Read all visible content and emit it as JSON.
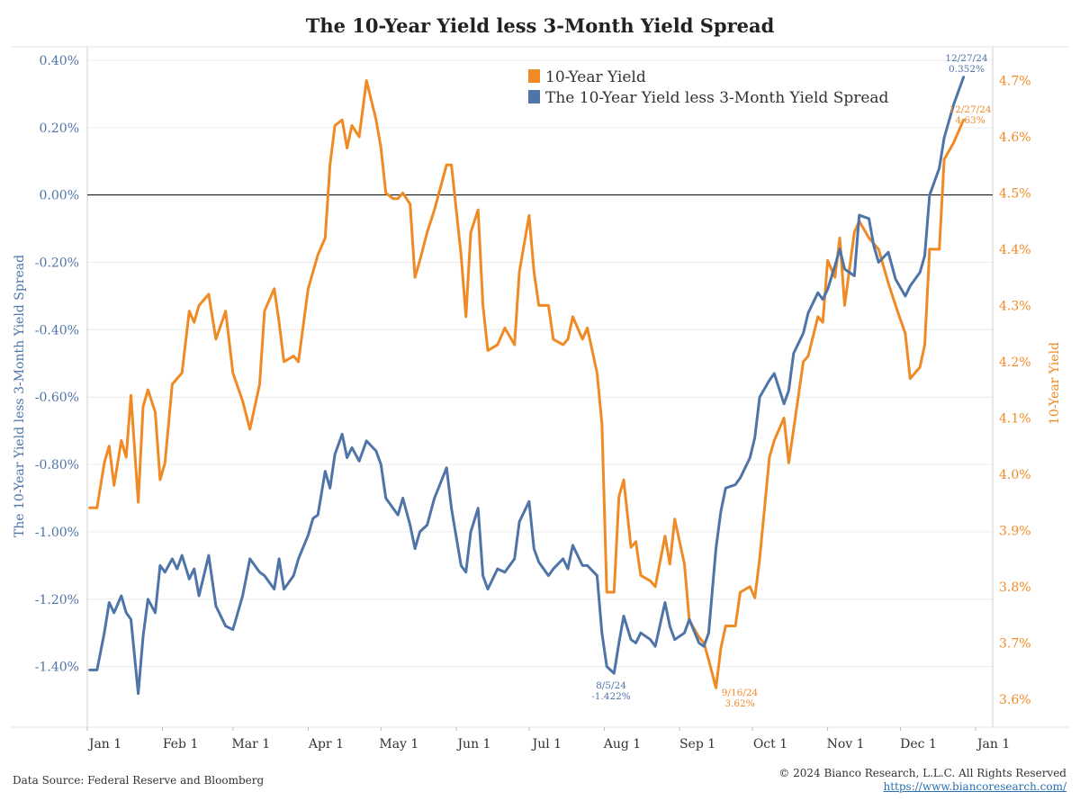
{
  "chart_data": {
    "type": "line",
    "title": "The 10-Year Yield less 3-Month Yield Spread",
    "x_ticks": [
      "Jan 1",
      "Feb 1",
      "Mar 1",
      "Apr 1",
      "May 1",
      "Jun 1",
      "Jul 1",
      "Aug 1",
      "Sep 1",
      "Oct 1",
      "Nov 1",
      "Dec 1",
      "Jan 1"
    ],
    "x_range": [
      "2024-01-01",
      "2025-01-08"
    ],
    "y_left": {
      "label": "The 10-Year Yield less 3-Month Yield Spread",
      "ticks": [
        "0.40%",
        "0.20%",
        "0.00%",
        "-0.20%",
        "-0.40%",
        "-0.60%",
        "-0.80%",
        "-1.00%",
        "-1.20%",
        "-1.40%"
      ],
      "range": [
        -1.58,
        0.44
      ]
    },
    "y_right": {
      "label": "10-Year Yield",
      "ticks": [
        "4.7%",
        "4.6%",
        "4.5%",
        "4.4%",
        "4.3%",
        "4.2%",
        "4.1%",
        "4.0%",
        "3.9%",
        "3.8%",
        "3.7%",
        "3.6%"
      ],
      "range": [
        3.55,
        4.76
      ]
    },
    "zero_line": 0,
    "grid": true,
    "legend": {
      "position": "top-center"
    },
    "series": [
      {
        "name": "10-Year Yield",
        "axis": "right",
        "color": "#f08a24",
        "x": [
          "2024-01-02",
          "2024-01-05",
          "2024-01-08",
          "2024-01-10",
          "2024-01-12",
          "2024-01-15",
          "2024-01-17",
          "2024-01-19",
          "2024-01-22",
          "2024-01-24",
          "2024-01-26",
          "2024-01-29",
          "2024-01-31",
          "2024-02-02",
          "2024-02-05",
          "2024-02-07",
          "2024-02-09",
          "2024-02-12",
          "2024-02-14",
          "2024-02-16",
          "2024-02-20",
          "2024-02-23",
          "2024-02-27",
          "2024-03-01",
          "2024-03-05",
          "2024-03-08",
          "2024-03-12",
          "2024-03-14",
          "2024-03-18",
          "2024-03-20",
          "2024-03-22",
          "2024-03-26",
          "2024-03-28",
          "2024-04-01",
          "2024-04-03",
          "2024-04-05",
          "2024-04-08",
          "2024-04-10",
          "2024-04-12",
          "2024-04-15",
          "2024-04-17",
          "2024-04-19",
          "2024-04-22",
          "2024-04-25",
          "2024-04-29",
          "2024-05-01",
          "2024-05-03",
          "2024-05-06",
          "2024-05-08",
          "2024-05-10",
          "2024-05-13",
          "2024-05-15",
          "2024-05-17",
          "2024-05-20",
          "2024-05-23",
          "2024-05-28",
          "2024-05-30",
          "2024-06-03",
          "2024-06-05",
          "2024-06-07",
          "2024-06-10",
          "2024-06-12",
          "2024-06-14",
          "2024-06-18",
          "2024-06-21",
          "2024-06-25",
          "2024-06-27",
          "2024-07-01",
          "2024-07-03",
          "2024-07-05",
          "2024-07-09",
          "2024-07-11",
          "2024-07-15",
          "2024-07-17",
          "2024-07-19",
          "2024-07-23",
          "2024-07-25",
          "2024-07-29",
          "2024-07-31",
          "2024-08-02",
          "2024-08-05",
          "2024-08-07",
          "2024-08-09",
          "2024-08-12",
          "2024-08-14",
          "2024-08-16",
          "2024-08-20",
          "2024-08-22",
          "2024-08-26",
          "2024-08-28",
          "2024-08-30",
          "2024-09-03",
          "2024-09-05",
          "2024-09-09",
          "2024-09-11",
          "2024-09-13",
          "2024-09-16",
          "2024-09-18",
          "2024-09-20",
          "2024-09-24",
          "2024-09-26",
          "2024-09-30",
          "2024-10-02",
          "2024-10-04",
          "2024-10-08",
          "2024-10-10",
          "2024-10-14",
          "2024-10-16",
          "2024-10-18",
          "2024-10-22",
          "2024-10-24",
          "2024-10-28",
          "2024-10-30",
          "2024-11-01",
          "2024-11-04",
          "2024-11-06",
          "2024-11-08",
          "2024-11-12",
          "2024-11-14",
          "2024-11-18",
          "2024-11-20",
          "2024-11-22",
          "2024-11-26",
          "2024-11-29",
          "2024-12-03",
          "2024-12-05",
          "2024-12-09",
          "2024-12-11",
          "2024-12-13",
          "2024-12-17",
          "2024-12-19",
          "2024-12-23",
          "2024-12-27"
        ],
        "values": [
          3.94,
          3.94,
          4.02,
          4.05,
          3.98,
          4.06,
          4.03,
          4.14,
          3.95,
          4.12,
          4.15,
          4.11,
          3.99,
          4.02,
          4.16,
          4.17,
          4.18,
          4.29,
          4.27,
          4.3,
          4.32,
          4.24,
          4.29,
          4.18,
          4.13,
          4.08,
          4.16,
          4.29,
          4.33,
          4.27,
          4.2,
          4.21,
          4.2,
          4.33,
          4.36,
          4.39,
          4.42,
          4.55,
          4.62,
          4.63,
          4.58,
          4.62,
          4.6,
          4.7,
          4.63,
          4.58,
          4.5,
          4.49,
          4.49,
          4.5,
          4.48,
          4.35,
          4.38,
          4.43,
          4.47,
          4.55,
          4.55,
          4.39,
          4.28,
          4.43,
          4.47,
          4.3,
          4.22,
          4.23,
          4.26,
          4.23,
          4.36,
          4.46,
          4.36,
          4.3,
          4.3,
          4.24,
          4.23,
          4.24,
          4.28,
          4.24,
          4.26,
          4.18,
          4.09,
          3.79,
          3.79,
          3.96,
          3.99,
          3.87,
          3.88,
          3.82,
          3.81,
          3.8,
          3.89,
          3.84,
          3.92,
          3.84,
          3.74,
          3.71,
          3.7,
          3.67,
          3.62,
          3.69,
          3.73,
          3.73,
          3.79,
          3.8,
          3.78,
          3.85,
          4.03,
          4.06,
          4.1,
          4.02,
          4.08,
          4.2,
          4.21,
          4.28,
          4.27,
          4.38,
          4.35,
          4.42,
          4.3,
          4.43,
          4.45,
          4.42,
          4.41,
          4.4,
          4.34,
          4.3,
          4.25,
          4.17,
          4.19,
          4.23,
          4.4,
          4.4,
          4.56,
          4.59,
          4.63
        ]
      },
      {
        "name": "The 10-Year Yield less 3-Month Yield Spread",
        "axis": "left",
        "color": "#4e74a8",
        "x": [
          "2024-01-02",
          "2024-01-05",
          "2024-01-08",
          "2024-01-10",
          "2024-01-12",
          "2024-01-15",
          "2024-01-17",
          "2024-01-19",
          "2024-01-22",
          "2024-01-24",
          "2024-01-26",
          "2024-01-29",
          "2024-01-31",
          "2024-02-02",
          "2024-02-05",
          "2024-02-07",
          "2024-02-09",
          "2024-02-12",
          "2024-02-14",
          "2024-02-16",
          "2024-02-20",
          "2024-02-23",
          "2024-02-27",
          "2024-03-01",
          "2024-03-05",
          "2024-03-08",
          "2024-03-12",
          "2024-03-14",
          "2024-03-18",
          "2024-03-20",
          "2024-03-22",
          "2024-03-26",
          "2024-03-28",
          "2024-04-01",
          "2024-04-03",
          "2024-04-05",
          "2024-04-08",
          "2024-04-10",
          "2024-04-12",
          "2024-04-15",
          "2024-04-17",
          "2024-04-19",
          "2024-04-22",
          "2024-04-25",
          "2024-04-29",
          "2024-05-01",
          "2024-05-03",
          "2024-05-06",
          "2024-05-08",
          "2024-05-10",
          "2024-05-13",
          "2024-05-15",
          "2024-05-17",
          "2024-05-20",
          "2024-05-23",
          "2024-05-28",
          "2024-05-30",
          "2024-06-03",
          "2024-06-05",
          "2024-06-07",
          "2024-06-10",
          "2024-06-12",
          "2024-06-14",
          "2024-06-18",
          "2024-06-21",
          "2024-06-25",
          "2024-06-27",
          "2024-07-01",
          "2024-07-03",
          "2024-07-05",
          "2024-07-09",
          "2024-07-11",
          "2024-07-15",
          "2024-07-17",
          "2024-07-19",
          "2024-07-23",
          "2024-07-25",
          "2024-07-29",
          "2024-07-31",
          "2024-08-02",
          "2024-08-05",
          "2024-08-07",
          "2024-08-09",
          "2024-08-12",
          "2024-08-14",
          "2024-08-16",
          "2024-08-20",
          "2024-08-22",
          "2024-08-26",
          "2024-08-28",
          "2024-08-30",
          "2024-09-03",
          "2024-09-05",
          "2024-09-09",
          "2024-09-11",
          "2024-09-13",
          "2024-09-16",
          "2024-09-18",
          "2024-09-20",
          "2024-09-24",
          "2024-09-26",
          "2024-09-30",
          "2024-10-02",
          "2024-10-04",
          "2024-10-08",
          "2024-10-10",
          "2024-10-14",
          "2024-10-16",
          "2024-10-18",
          "2024-10-22",
          "2024-10-24",
          "2024-10-28",
          "2024-10-30",
          "2024-11-01",
          "2024-11-04",
          "2024-11-06",
          "2024-11-08",
          "2024-11-12",
          "2024-11-14",
          "2024-11-18",
          "2024-11-20",
          "2024-11-22",
          "2024-11-26",
          "2024-11-29",
          "2024-12-03",
          "2024-12-05",
          "2024-12-09",
          "2024-12-11",
          "2024-12-13",
          "2024-12-17",
          "2024-12-19",
          "2024-12-23",
          "2024-12-27"
        ],
        "values": [
          -1.41,
          -1.41,
          -1.3,
          -1.21,
          -1.24,
          -1.19,
          -1.24,
          -1.26,
          -1.48,
          -1.31,
          -1.2,
          -1.24,
          -1.1,
          -1.12,
          -1.08,
          -1.11,
          -1.07,
          -1.14,
          -1.11,
          -1.19,
          -1.07,
          -1.22,
          -1.28,
          -1.29,
          -1.19,
          -1.08,
          -1.12,
          -1.13,
          -1.17,
          -1.08,
          -1.17,
          -1.13,
          -1.08,
          -1.01,
          -0.96,
          -0.95,
          -0.82,
          -0.87,
          -0.77,
          -0.71,
          -0.78,
          -0.75,
          -0.79,
          -0.73,
          -0.76,
          -0.8,
          -0.9,
          -0.93,
          -0.95,
          -0.9,
          -0.98,
          -1.05,
          -1.0,
          -0.98,
          -0.9,
          -0.81,
          -0.93,
          -1.1,
          -1.12,
          -1.0,
          -0.93,
          -1.13,
          -1.17,
          -1.11,
          -1.12,
          -1.08,
          -0.97,
          -0.91,
          -1.05,
          -1.09,
          -1.13,
          -1.11,
          -1.08,
          -1.11,
          -1.04,
          -1.1,
          -1.1,
          -1.13,
          -1.3,
          -1.4,
          -1.42,
          -1.33,
          -1.25,
          -1.32,
          -1.33,
          -1.3,
          -1.32,
          -1.34,
          -1.21,
          -1.28,
          -1.32,
          -1.3,
          -1.26,
          -1.33,
          -1.34,
          -1.3,
          -1.05,
          -0.94,
          -0.87,
          -0.86,
          -0.84,
          -0.78,
          -0.72,
          -0.6,
          -0.55,
          -0.53,
          -0.62,
          -0.58,
          -0.47,
          -0.41,
          -0.35,
          -0.29,
          -0.31,
          -0.28,
          -0.21,
          -0.16,
          -0.22,
          -0.24,
          -0.06,
          -0.07,
          -0.15,
          -0.2,
          -0.17,
          -0.25,
          -0.3,
          -0.27,
          -0.23,
          -0.18,
          0.0,
          0.08,
          0.17,
          0.27,
          0.35
        ]
      }
    ],
    "annotations": [
      {
        "series": "The 10-Year Yield less 3-Month Yield Spread",
        "date": "12/27/24",
        "value": "0.352%"
      },
      {
        "series": "10-Year Yield",
        "date": "12/27/24",
        "value": "4.63%"
      },
      {
        "series": "The 10-Year Yield less 3-Month Yield Spread",
        "date": "8/5/24",
        "value": "-1.422%"
      },
      {
        "series": "10-Year Yield",
        "date": "9/16/24",
        "value": "3.62%"
      }
    ]
  },
  "footer": {
    "source": "Data Source: Federal Reserve and Bloomberg",
    "copyright": "© 2024 Bianco Research, L.L.C. All Rights Reserved",
    "link": "https://www.biancoresearch.com/"
  },
  "colors": {
    "spread": "#4e74a8",
    "yield": "#f08a24",
    "grid": "#ececec",
    "zero_line": "#000000"
  }
}
